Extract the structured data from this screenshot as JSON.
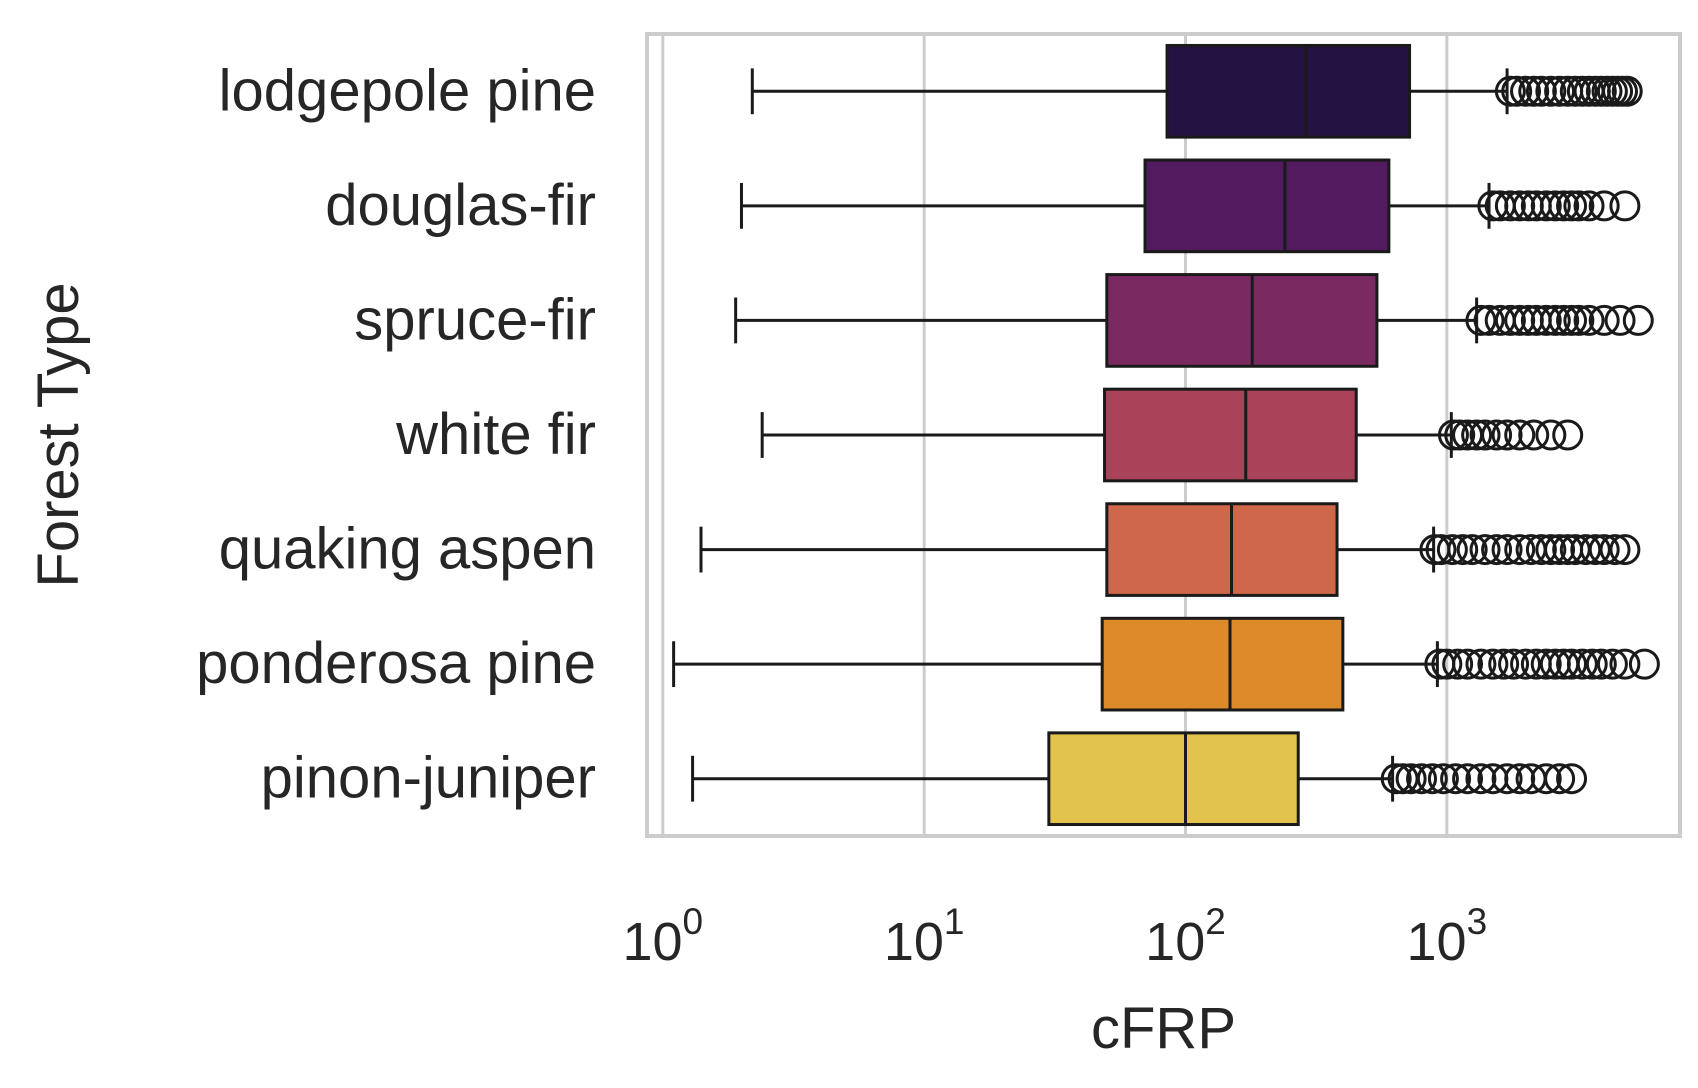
{
  "chart_data": {
    "type": "box",
    "orientation": "horizontal",
    "xlabel": "cFRP",
    "ylabel": "Forest Type",
    "xscale": "log",
    "xlim": [
      0.87,
      7800
    ],
    "xticks": [
      {
        "value": 1,
        "base": "10",
        "exp": "0"
      },
      {
        "value": 10,
        "base": "10",
        "exp": "1"
      },
      {
        "value": 100,
        "base": "10",
        "exp": "2"
      },
      {
        "value": 1000,
        "base": "10",
        "exp": "3"
      }
    ],
    "grid": true,
    "categories": [
      {
        "name": "lodgepole pine",
        "color": "#231242",
        "whisker_low": 2.2,
        "q1": 85,
        "median": 290,
        "q3": 720,
        "whisker_high": 1700,
        "outliers": [
          1750,
          1850,
          2000,
          2150,
          2300,
          2500,
          2700,
          2900,
          3100,
          3300,
          3500,
          3700,
          3900,
          4100,
          4300,
          4500,
          4700,
          4900
        ]
      },
      {
        "name": "douglas-fir",
        "color": "#521a5f",
        "whisker_low": 2.0,
        "q1": 70,
        "median": 240,
        "q3": 600,
        "whisker_high": 1450,
        "outliers": [
          1500,
          1600,
          1750,
          1900,
          2050,
          2200,
          2400,
          2600,
          2800,
          3000,
          3200,
          3500,
          4000,
          4800
        ]
      },
      {
        "name": "spruce-fir",
        "color": "#7b2a61",
        "whisker_low": 1.9,
        "q1": 50,
        "median": 180,
        "q3": 540,
        "whisker_high": 1300,
        "outliers": [
          1350,
          1450,
          1600,
          1750,
          1900,
          2050,
          2200,
          2400,
          2600,
          2800,
          3000,
          3200,
          3500,
          4000,
          4600,
          5400
        ]
      },
      {
        "name": "white fir",
        "color": "#a8435a",
        "whisker_low": 2.4,
        "q1": 49,
        "median": 170,
        "q3": 450,
        "whisker_high": 1040,
        "outliers": [
          1060,
          1120,
          1200,
          1300,
          1400,
          1550,
          1700,
          1900,
          2150,
          2500,
          2900
        ]
      },
      {
        "name": "quaking aspen",
        "color": "#cf684a",
        "whisker_low": 1.4,
        "q1": 50,
        "median": 150,
        "q3": 380,
        "whisker_high": 890,
        "outliers": [
          900,
          950,
          1050,
          1150,
          1250,
          1400,
          1550,
          1700,
          1900,
          2100,
          2300,
          2500,
          2700,
          2900,
          3100,
          3400,
          3700,
          4000,
          4400,
          4800
        ]
      },
      {
        "name": "ponderosa pine",
        "color": "#dd8b2a",
        "whisker_low": 1.1,
        "q1": 48,
        "median": 148,
        "q3": 400,
        "whisker_high": 920,
        "outliers": [
          940,
          1000,
          1100,
          1200,
          1350,
          1500,
          1650,
          1800,
          2000,
          2200,
          2400,
          2600,
          2800,
          3000,
          3300,
          3600,
          3900,
          4300,
          4800,
          5700
        ]
      },
      {
        "name": "pinon-juniper",
        "color": "#e2c34e",
        "whisker_low": 1.3,
        "q1": 30,
        "median": 100,
        "q3": 270,
        "whisker_high": 620,
        "outliers": [
          640,
          680,
          730,
          800,
          880,
          970,
          1080,
          1200,
          1350,
          1500,
          1700,
          1900,
          2100,
          2400,
          2700,
          3000
        ]
      }
    ]
  }
}
